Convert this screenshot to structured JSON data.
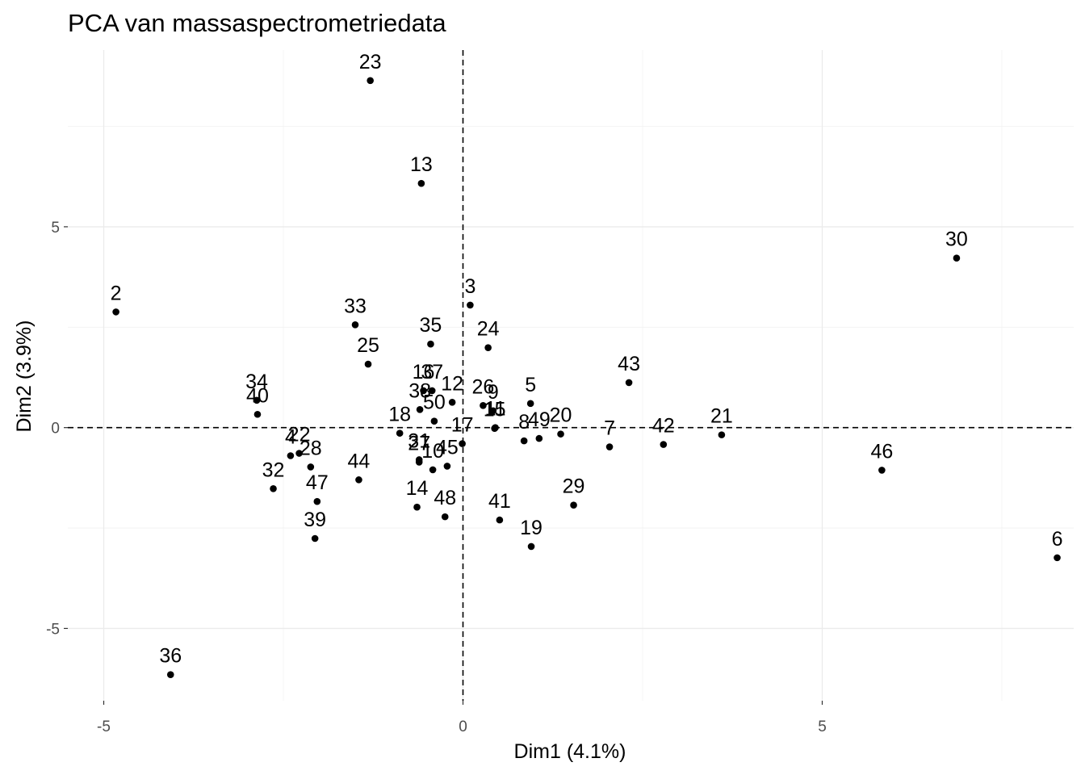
{
  "chart_data": {
    "type": "scatter",
    "title": "PCA van massaspectrometriedata",
    "xlabel": "Dim1 (4.1%)",
    "ylabel": "Dim2 (3.9%)",
    "xlim": [
      -5.5,
      8.5
    ],
    "ylim": [
      -6.8,
      9.4
    ],
    "x_ticks": [
      -5,
      0,
      5
    ],
    "y_ticks": [
      -5,
      0,
      5
    ],
    "x_tick_labels": [
      "-5",
      "0",
      "5"
    ],
    "y_tick_labels": [
      "-5",
      "0",
      "5"
    ],
    "reference_lines": {
      "x": 0,
      "y": 0
    },
    "grid": true,
    "point_color": "#000000",
    "points": [
      {
        "label": "2",
        "x": -4.83,
        "y": 2.88
      },
      {
        "label": "3",
        "x": 0.1,
        "y": 3.05
      },
      {
        "label": "4",
        "x": -2.4,
        "y": -0.7
      },
      {
        "label": "5",
        "x": 0.94,
        "y": 0.6
      },
      {
        "label": "6",
        "x": 8.27,
        "y": -3.24
      },
      {
        "label": "7",
        "x": 2.04,
        "y": -0.48
      },
      {
        "label": "8",
        "x": 0.85,
        "y": -0.33
      },
      {
        "label": "9",
        "x": 0.42,
        "y": 0.42
      },
      {
        "label": "10",
        "x": -0.42,
        "y": -1.05
      },
      {
        "label": "11",
        "x": 0.45,
        "y": 0.0
      },
      {
        "label": "12",
        "x": -0.15,
        "y": 0.63
      },
      {
        "label": "13",
        "x": -0.58,
        "y": 6.08
      },
      {
        "label": "14",
        "x": -0.64,
        "y": -1.98
      },
      {
        "label": "15",
        "x": 0.44,
        "y": -0.02
      },
      {
        "label": "16",
        "x": -0.55,
        "y": 0.92
      },
      {
        "label": "17",
        "x": -0.01,
        "y": -0.4
      },
      {
        "label": "18",
        "x": -0.88,
        "y": -0.14
      },
      {
        "label": "19",
        "x": 0.95,
        "y": -2.96
      },
      {
        "label": "20",
        "x": 1.36,
        "y": -0.16
      },
      {
        "label": "21",
        "x": 3.6,
        "y": -0.18
      },
      {
        "label": "22",
        "x": -2.28,
        "y": -0.64
      },
      {
        "label": "23",
        "x": -1.29,
        "y": 8.64
      },
      {
        "label": "24",
        "x": 0.35,
        "y": 1.99
      },
      {
        "label": "25",
        "x": -1.32,
        "y": 1.58
      },
      {
        "label": "26",
        "x": 0.28,
        "y": 0.55
      },
      {
        "label": "27",
        "x": -0.61,
        "y": -0.86
      },
      {
        "label": "28",
        "x": -2.12,
        "y": -0.98
      },
      {
        "label": "29",
        "x": 1.54,
        "y": -1.93
      },
      {
        "label": "30",
        "x": 6.87,
        "y": 4.22
      },
      {
        "label": "31",
        "x": -0.61,
        "y": -0.8
      },
      {
        "label": "32",
        "x": -2.64,
        "y": -1.52
      },
      {
        "label": "33",
        "x": -1.5,
        "y": 2.56
      },
      {
        "label": "34",
        "x": -2.87,
        "y": 0.68
      },
      {
        "label": "35",
        "x": -0.45,
        "y": 2.08
      },
      {
        "label": "36",
        "x": -4.07,
        "y": -6.15
      },
      {
        "label": "37",
        "x": -0.43,
        "y": 0.92
      },
      {
        "label": "38",
        "x": -0.6,
        "y": 0.45
      },
      {
        "label": "39",
        "x": -2.06,
        "y": -2.76
      },
      {
        "label": "40",
        "x": -2.86,
        "y": 0.33
      },
      {
        "label": "41",
        "x": 0.51,
        "y": -2.3
      },
      {
        "label": "42",
        "x": 2.79,
        "y": -0.42
      },
      {
        "label": "43",
        "x": 2.31,
        "y": 1.12
      },
      {
        "label": "44",
        "x": -1.45,
        "y": -1.3
      },
      {
        "label": "45",
        "x": -0.22,
        "y": -0.96
      },
      {
        "label": "46",
        "x": 5.83,
        "y": -1.06
      },
      {
        "label": "47",
        "x": -2.03,
        "y": -1.84
      },
      {
        "label": "48",
        "x": -0.25,
        "y": -2.22
      },
      {
        "label": "49",
        "x": 1.06,
        "y": -0.27
      },
      {
        "label": "50",
        "x": -0.4,
        "y": 0.16
      }
    ]
  }
}
